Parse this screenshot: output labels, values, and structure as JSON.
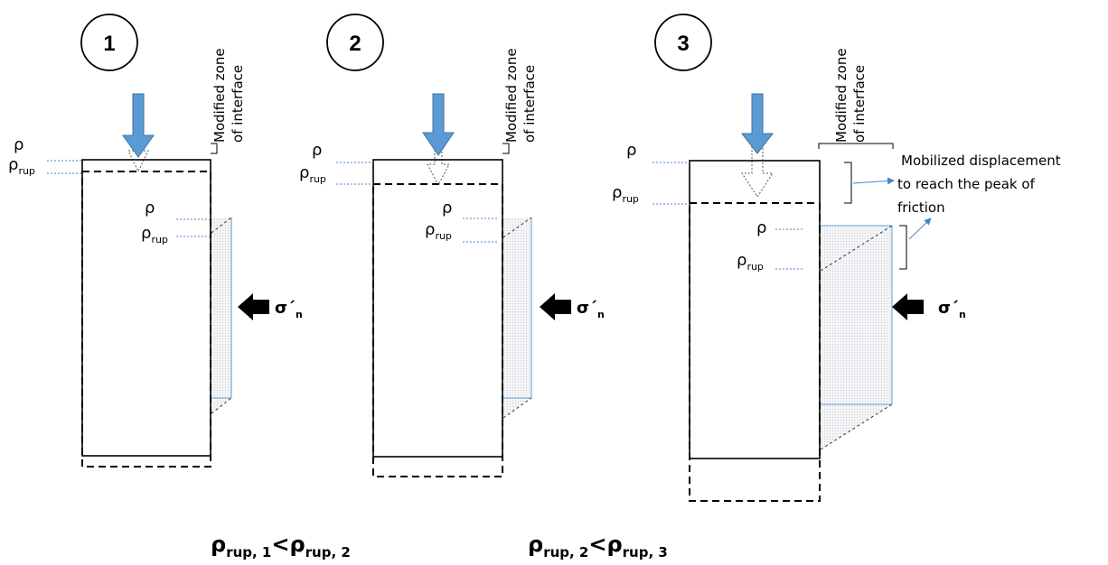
{
  "labels": {
    "rho": "ρ",
    "rho_rup_base": "ρ",
    "rup_sub": "rup",
    "sigma": "σ´",
    "sigma_sub": "n",
    "modified_zone_line1": "Modified zone",
    "modified_zone_line2": "of interface",
    "mobilized_line1": "Mobilized displacement",
    "mobilized_line2": "to reach the peak of",
    "mobilized_line3": "friction"
  },
  "panels": [
    {
      "number": "1"
    },
    {
      "number": "2"
    },
    {
      "number": "3"
    }
  ],
  "comparisons": [
    {
      "left_base": "ρ",
      "left_sub": "rup, 1",
      "op": "<",
      "right_base": "ρ",
      "right_sub": "rup, 2"
    },
    {
      "left_base": "ρ",
      "left_sub": "rup, 2",
      "op": "<",
      "right_base": "ρ",
      "right_sub": "rup, 3"
    }
  ],
  "colors": {
    "arrow_blue": "#5b9bd5",
    "arrow_blue_stroke": "#41719c",
    "guide_blue": "#4a86c5",
    "zone_fill": "#e9ecef"
  }
}
